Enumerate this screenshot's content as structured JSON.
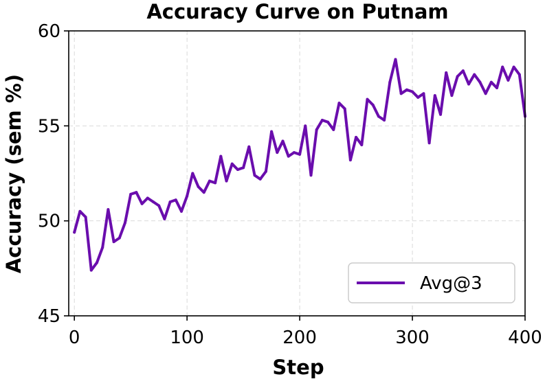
{
  "chart_data": {
    "type": "line",
    "title": "Accuracy Curve on Putnam",
    "xlabel": "Step",
    "ylabel": "Accuracy (sem %)",
    "xlim": [
      -5,
      400
    ],
    "ylim": [
      45,
      60
    ],
    "xticks": [
      0,
      100,
      200,
      300,
      400
    ],
    "yticks": [
      45,
      50,
      55,
      60
    ],
    "grid": true,
    "legend_position": "lower-right",
    "colors": {
      "series": "#6a0dad"
    },
    "series": [
      {
        "name": "Avg@3",
        "x": [
          0,
          5,
          10,
          15,
          20,
          25,
          30,
          35,
          40,
          45,
          50,
          55,
          60,
          65,
          70,
          75,
          80,
          85,
          90,
          95,
          100,
          105,
          110,
          115,
          120,
          125,
          130,
          135,
          140,
          145,
          150,
          155,
          160,
          165,
          170,
          175,
          180,
          185,
          190,
          195,
          200,
          205,
          210,
          215,
          220,
          225,
          230,
          235,
          240,
          245,
          250,
          255,
          260,
          265,
          270,
          275,
          280,
          285,
          290,
          295,
          300,
          305,
          310,
          315,
          320,
          325,
          330,
          335,
          340,
          345,
          350,
          355,
          360,
          365,
          370,
          375,
          380,
          385,
          390,
          395,
          400
        ],
        "y": [
          49.4,
          50.5,
          50.2,
          47.4,
          47.8,
          48.6,
          50.6,
          48.9,
          49.1,
          49.9,
          51.4,
          51.5,
          50.9,
          51.2,
          51.0,
          50.8,
          50.1,
          51.0,
          51.1,
          50.5,
          51.3,
          52.5,
          51.8,
          51.5,
          52.1,
          52.0,
          53.4,
          52.1,
          53.0,
          52.7,
          52.8,
          53.9,
          52.4,
          52.2,
          52.6,
          54.7,
          53.6,
          54.2,
          53.4,
          53.6,
          53.5,
          55.0,
          52.4,
          54.8,
          55.3,
          55.2,
          54.8,
          56.2,
          55.9,
          53.2,
          54.4,
          54.0,
          56.4,
          56.1,
          55.5,
          55.3,
          57.3,
          58.5,
          56.7,
          56.9,
          56.8,
          56.5,
          56.7,
          54.1,
          56.6,
          55.6,
          57.8,
          56.6,
          57.6,
          57.9,
          57.2,
          57.7,
          57.3,
          56.7,
          57.3,
          57.0,
          58.1,
          57.4,
          58.1,
          57.7,
          55.5
        ]
      }
    ]
  }
}
